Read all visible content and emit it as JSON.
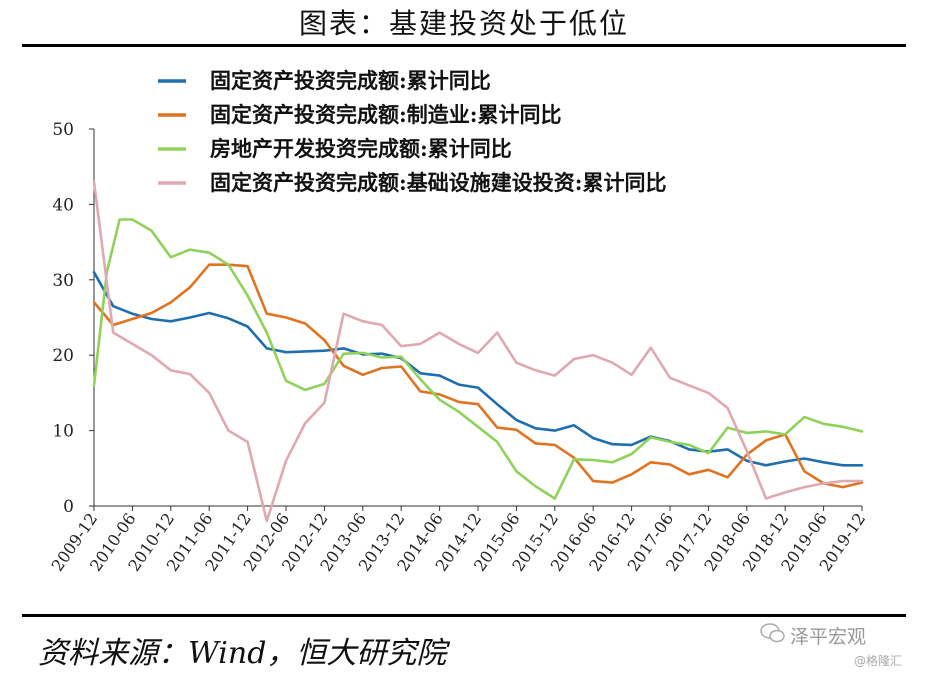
{
  "title": "图表：基建投资处于低位",
  "source": "资料来源：Wind，恒大研究院",
  "watermark": {
    "main": "泽平宏观",
    "sub": "@格隆汇"
  },
  "chart_data": {
    "type": "line",
    "title": "",
    "xlabel": "",
    "ylabel": "",
    "ylim": [
      0,
      50
    ],
    "yticks": [
      0,
      10,
      20,
      30,
      40,
      50
    ],
    "xlim": [
      "2009-12",
      "2019-12"
    ],
    "xticks": [
      "2009-12",
      "2010-06",
      "2010-12",
      "2011-06",
      "2011-12",
      "2012-06",
      "2012-12",
      "2013-06",
      "2013-12",
      "2014-06",
      "2014-12",
      "2015-06",
      "2015-12",
      "2016-06",
      "2016-12",
      "2017-06",
      "2017-12",
      "2018-06",
      "2018-12",
      "2019-06",
      "2019-12"
    ],
    "legend_position": "top",
    "grid": false,
    "series": [
      {
        "name": "固定资产投资完成额:累计同比",
        "color": "#1f6faf",
        "points": [
          [
            "2009-12",
            31.0
          ],
          [
            "2010-03",
            26.5
          ],
          [
            "2010-06",
            25.5
          ],
          [
            "2010-09",
            24.8
          ],
          [
            "2010-12",
            24.5
          ],
          [
            "2011-03",
            25.0
          ],
          [
            "2011-06",
            25.6
          ],
          [
            "2011-09",
            24.9
          ],
          [
            "2011-12",
            23.8
          ],
          [
            "2012-03",
            20.9
          ],
          [
            "2012-06",
            20.4
          ],
          [
            "2012-09",
            20.5
          ],
          [
            "2012-12",
            20.6
          ],
          [
            "2013-03",
            20.9
          ],
          [
            "2013-06",
            20.1
          ],
          [
            "2013-09",
            20.2
          ],
          [
            "2013-12",
            19.6
          ],
          [
            "2014-03",
            17.6
          ],
          [
            "2014-06",
            17.3
          ],
          [
            "2014-09",
            16.1
          ],
          [
            "2014-12",
            15.7
          ],
          [
            "2015-03",
            13.5
          ],
          [
            "2015-06",
            11.4
          ],
          [
            "2015-09",
            10.3
          ],
          [
            "2015-12",
            10.0
          ],
          [
            "2016-03",
            10.7
          ],
          [
            "2016-06",
            9.0
          ],
          [
            "2016-09",
            8.2
          ],
          [
            "2016-12",
            8.1
          ],
          [
            "2017-03",
            9.2
          ],
          [
            "2017-06",
            8.6
          ],
          [
            "2017-09",
            7.5
          ],
          [
            "2017-12",
            7.2
          ],
          [
            "2018-03",
            7.5
          ],
          [
            "2018-06",
            6.0
          ],
          [
            "2018-09",
            5.4
          ],
          [
            "2018-12",
            5.9
          ],
          [
            "2019-03",
            6.3
          ],
          [
            "2019-06",
            5.8
          ],
          [
            "2019-09",
            5.4
          ],
          [
            "2019-12",
            5.4
          ]
        ]
      },
      {
        "name": "固定资产投资完成额:制造业:累计同比",
        "color": "#e0731f",
        "points": [
          [
            "2009-12",
            27.0
          ],
          [
            "2010-03",
            24.0
          ],
          [
            "2010-06",
            24.8
          ],
          [
            "2010-09",
            25.6
          ],
          [
            "2010-12",
            27.0
          ],
          [
            "2011-03",
            29.0
          ],
          [
            "2011-06",
            32.0
          ],
          [
            "2011-09",
            32.0
          ],
          [
            "2011-12",
            31.8
          ],
          [
            "2012-03",
            25.5
          ],
          [
            "2012-06",
            25.0
          ],
          [
            "2012-09",
            24.2
          ],
          [
            "2012-12",
            22.0
          ],
          [
            "2013-03",
            18.6
          ],
          [
            "2013-06",
            17.4
          ],
          [
            "2013-09",
            18.3
          ],
          [
            "2013-12",
            18.5
          ],
          [
            "2014-03",
            15.2
          ],
          [
            "2014-06",
            14.8
          ],
          [
            "2014-09",
            13.8
          ],
          [
            "2014-12",
            13.5
          ],
          [
            "2015-03",
            10.4
          ],
          [
            "2015-06",
            10.1
          ],
          [
            "2015-09",
            8.3
          ],
          [
            "2015-12",
            8.1
          ],
          [
            "2016-03",
            6.4
          ],
          [
            "2016-06",
            3.3
          ],
          [
            "2016-09",
            3.1
          ],
          [
            "2016-12",
            4.2
          ],
          [
            "2017-03",
            5.8
          ],
          [
            "2017-06",
            5.5
          ],
          [
            "2017-09",
            4.2
          ],
          [
            "2017-12",
            4.8
          ],
          [
            "2018-03",
            3.8
          ],
          [
            "2018-06",
            6.8
          ],
          [
            "2018-09",
            8.7
          ],
          [
            "2018-12",
            9.5
          ],
          [
            "2019-03",
            4.6
          ],
          [
            "2019-06",
            3.0
          ],
          [
            "2019-09",
            2.5
          ],
          [
            "2019-12",
            3.1
          ]
        ]
      },
      {
        "name": "房地产开发投资完成额:累计同比",
        "color": "#8fd25a",
        "points": [
          [
            "2009-12",
            16.0
          ],
          [
            "2010-02",
            31.0
          ],
          [
            "2010-04",
            38.0
          ],
          [
            "2010-06",
            38.0
          ],
          [
            "2010-09",
            36.5
          ],
          [
            "2010-12",
            33.0
          ],
          [
            "2011-03",
            34.0
          ],
          [
            "2011-06",
            33.6
          ],
          [
            "2011-09",
            32.0
          ],
          [
            "2011-12",
            27.9
          ],
          [
            "2012-03",
            23.0
          ],
          [
            "2012-06",
            16.6
          ],
          [
            "2012-09",
            15.4
          ],
          [
            "2012-12",
            16.2
          ],
          [
            "2013-03",
            20.2
          ],
          [
            "2013-06",
            20.3
          ],
          [
            "2013-09",
            19.7
          ],
          [
            "2013-12",
            19.8
          ],
          [
            "2014-03",
            16.8
          ],
          [
            "2014-06",
            14.1
          ],
          [
            "2014-09",
            12.5
          ],
          [
            "2014-12",
            10.5
          ],
          [
            "2015-03",
            8.5
          ],
          [
            "2015-06",
            4.6
          ],
          [
            "2015-09",
            2.6
          ],
          [
            "2015-12",
            1.0
          ],
          [
            "2016-03",
            6.2
          ],
          [
            "2016-06",
            6.1
          ],
          [
            "2016-09",
            5.8
          ],
          [
            "2016-12",
            6.9
          ],
          [
            "2017-03",
            9.1
          ],
          [
            "2017-06",
            8.5
          ],
          [
            "2017-09",
            8.1
          ],
          [
            "2017-12",
            7.0
          ],
          [
            "2018-03",
            10.4
          ],
          [
            "2018-06",
            9.7
          ],
          [
            "2018-09",
            9.9
          ],
          [
            "2018-12",
            9.5
          ],
          [
            "2019-03",
            11.8
          ],
          [
            "2019-06",
            10.9
          ],
          [
            "2019-09",
            10.5
          ],
          [
            "2019-12",
            9.9
          ]
        ]
      },
      {
        "name": "固定资产投资完成额:基础设施建设投资:累计同比",
        "color": "#e0a8b0",
        "points": [
          [
            "2009-12",
            43.0
          ],
          [
            "2010-03",
            23.0
          ],
          [
            "2010-06",
            21.5
          ],
          [
            "2010-09",
            20.0
          ],
          [
            "2010-12",
            18.0
          ],
          [
            "2011-03",
            17.5
          ],
          [
            "2011-06",
            15.0
          ],
          [
            "2011-09",
            10.0
          ],
          [
            "2011-12",
            8.5
          ],
          [
            "2012-03",
            -2.0
          ],
          [
            "2012-06",
            6.0
          ],
          [
            "2012-09",
            11.0
          ],
          [
            "2012-12",
            13.7
          ],
          [
            "2013-03",
            25.5
          ],
          [
            "2013-06",
            24.5
          ],
          [
            "2013-09",
            24.0
          ],
          [
            "2013-12",
            21.2
          ],
          [
            "2014-03",
            21.5
          ],
          [
            "2014-06",
            23.0
          ],
          [
            "2014-09",
            21.5
          ],
          [
            "2014-12",
            20.3
          ],
          [
            "2015-03",
            23.0
          ],
          [
            "2015-06",
            19.0
          ],
          [
            "2015-09",
            18.0
          ],
          [
            "2015-12",
            17.3
          ],
          [
            "2016-03",
            19.5
          ],
          [
            "2016-06",
            20.0
          ],
          [
            "2016-09",
            19.0
          ],
          [
            "2016-12",
            17.4
          ],
          [
            "2017-03",
            21.0
          ],
          [
            "2017-06",
            17.0
          ],
          [
            "2017-09",
            16.0
          ],
          [
            "2017-12",
            15.0
          ],
          [
            "2018-03",
            13.0
          ],
          [
            "2018-06",
            7.3
          ],
          [
            "2018-09",
            1.0
          ],
          [
            "2018-12",
            1.8
          ],
          [
            "2019-03",
            2.5
          ],
          [
            "2019-06",
            3.0
          ],
          [
            "2019-09",
            3.3
          ],
          [
            "2019-12",
            3.3
          ]
        ]
      }
    ]
  }
}
